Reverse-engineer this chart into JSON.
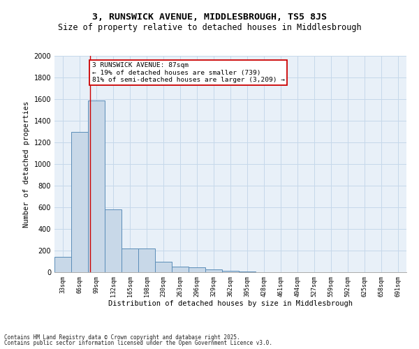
{
  "title_line1": "3, RUNSWICK AVENUE, MIDDLESBROUGH, TS5 8JS",
  "title_line2": "Size of property relative to detached houses in Middlesbrough",
  "xlabel": "Distribution of detached houses by size in Middlesbrough",
  "ylabel": "Number of detached properties",
  "bins": [
    "33sqm",
    "66sqm",
    "99sqm",
    "132sqm",
    "165sqm",
    "198sqm",
    "230sqm",
    "263sqm",
    "296sqm",
    "329sqm",
    "362sqm",
    "395sqm",
    "428sqm",
    "461sqm",
    "494sqm",
    "527sqm",
    "559sqm",
    "592sqm",
    "625sqm",
    "658sqm",
    "691sqm"
  ],
  "values": [
    140,
    1300,
    1590,
    580,
    220,
    220,
    100,
    50,
    45,
    25,
    15,
    5,
    2,
    1,
    1,
    0,
    0,
    0,
    0,
    0,
    0
  ],
  "bar_color": "#c8d8e8",
  "bar_edge_color": "#5b8db8",
  "grid_color": "#c5d8ea",
  "background_color": "#e8f0f8",
  "red_line_x": 1.62,
  "annotation_text": "3 RUNSWICK AVENUE: 87sqm\n← 19% of detached houses are smaller (739)\n81% of semi-detached houses are larger (3,209) →",
  "annotation_box_facecolor": "#ffffff",
  "annotation_box_edgecolor": "#cc0000",
  "footer_line1": "Contains HM Land Registry data © Crown copyright and database right 2025.",
  "footer_line2": "Contains public sector information licensed under the Open Government Licence v3.0.",
  "ylim": [
    0,
    2000
  ],
  "yticks": [
    0,
    200,
    400,
    600,
    800,
    1000,
    1200,
    1400,
    1600,
    1800,
    2000
  ],
  "title1_fontsize": 9.5,
  "title2_fontsize": 8.5,
  "ylabel_fontsize": 7.5,
  "xlabel_fontsize": 7.5,
  "ytick_fontsize": 7,
  "xtick_fontsize": 6,
  "annot_fontsize": 6.8,
  "footer_fontsize": 5.5
}
